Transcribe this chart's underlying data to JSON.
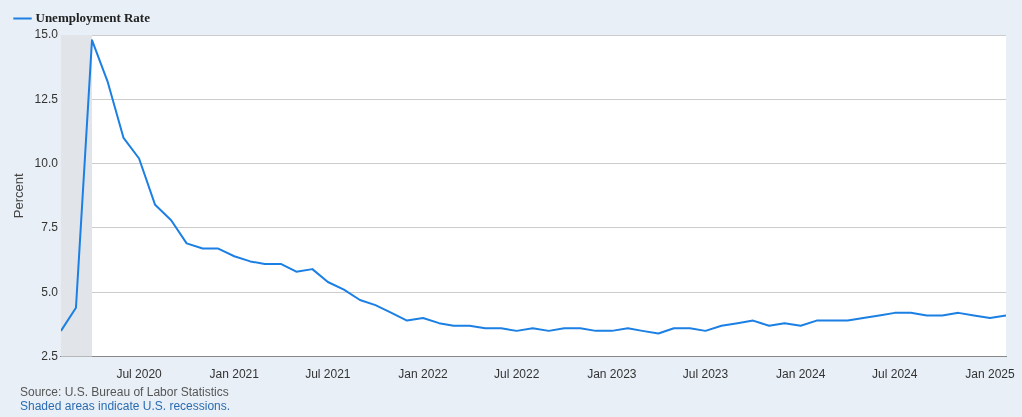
{
  "chart_data": {
    "type": "line",
    "ylabel": "Percent",
    "x": [
      "2020-02",
      "2020-03",
      "2020-04",
      "2020-05",
      "2020-06",
      "2020-07",
      "2020-08",
      "2020-09",
      "2020-10",
      "2020-11",
      "2020-12",
      "2021-01",
      "2021-02",
      "2021-03",
      "2021-04",
      "2021-05",
      "2021-06",
      "2021-07",
      "2021-08",
      "2021-09",
      "2021-10",
      "2021-11",
      "2021-12",
      "2022-01",
      "2022-02",
      "2022-03",
      "2022-04",
      "2022-05",
      "2022-06",
      "2022-07",
      "2022-08",
      "2022-09",
      "2022-10",
      "2022-11",
      "2022-12",
      "2023-01",
      "2023-02",
      "2023-03",
      "2023-04",
      "2023-05",
      "2023-06",
      "2023-07",
      "2023-08",
      "2023-09",
      "2023-10",
      "2023-11",
      "2023-12",
      "2024-01",
      "2024-02",
      "2024-03",
      "2024-04",
      "2024-05",
      "2024-06",
      "2024-07",
      "2024-08",
      "2024-09",
      "2024-10",
      "2024-11",
      "2024-12",
      "2025-01",
      "2025-02"
    ],
    "series": [
      {
        "name": "Unemployment Rate",
        "color": "#1b7fe3",
        "values": [
          3.5,
          4.4,
          14.8,
          13.2,
          11.0,
          10.2,
          8.4,
          7.8,
          6.9,
          6.7,
          6.7,
          6.4,
          6.2,
          6.1,
          6.1,
          5.8,
          5.9,
          5.4,
          5.1,
          4.7,
          4.5,
          4.2,
          3.9,
          4.0,
          3.8,
          3.7,
          3.7,
          3.6,
          3.6,
          3.5,
          3.6,
          3.5,
          3.6,
          3.6,
          3.5,
          3.5,
          3.6,
          3.5,
          3.4,
          3.6,
          3.6,
          3.5,
          3.7,
          3.8,
          3.9,
          3.7,
          3.8,
          3.7,
          3.9,
          3.9,
          3.9,
          4.0,
          4.1,
          4.2,
          4.2,
          4.1,
          4.1,
          4.2,
          4.1,
          4.0,
          4.1
        ]
      }
    ],
    "xlim": [
      "2020-02",
      "2025-02"
    ],
    "xticks": [
      {
        "value": "2020-07",
        "label": "Jul 2020"
      },
      {
        "value": "2021-01",
        "label": "Jan 2021"
      },
      {
        "value": "2021-07",
        "label": "Jul 2021"
      },
      {
        "value": "2022-01",
        "label": "Jan 2022"
      },
      {
        "value": "2022-07",
        "label": "Jul 2022"
      },
      {
        "value": "2023-01",
        "label": "Jan 2023"
      },
      {
        "value": "2023-07",
        "label": "Jul 2023"
      },
      {
        "value": "2024-01",
        "label": "Jan 2024"
      },
      {
        "value": "2024-07",
        "label": "Jul 2024"
      },
      {
        "value": "2025-01",
        "label": "Jan 2025"
      }
    ],
    "ylim": [
      2.5,
      15
    ],
    "yticks": [
      {
        "value": 2.5,
        "label": "2.5"
      },
      {
        "value": 5,
        "label": "5.0"
      },
      {
        "value": 7.5,
        "label": "7.5"
      },
      {
        "value": 10,
        "label": "10.0"
      },
      {
        "value": 12.5,
        "label": "12.5"
      },
      {
        "value": 15,
        "label": "15.0"
      }
    ],
    "bands": [
      {
        "axis": "x",
        "from": "2020-02",
        "to": "2020-04",
        "color": "#e1e5ea"
      }
    ],
    "grid": "y",
    "legend": "top left",
    "marker": "none",
    "line_style": "solid",
    "annotations": [
      "Source: U.S. Bureau of Labor Statistics",
      "Shaded areas indicate U.S. recessions."
    ]
  }
}
